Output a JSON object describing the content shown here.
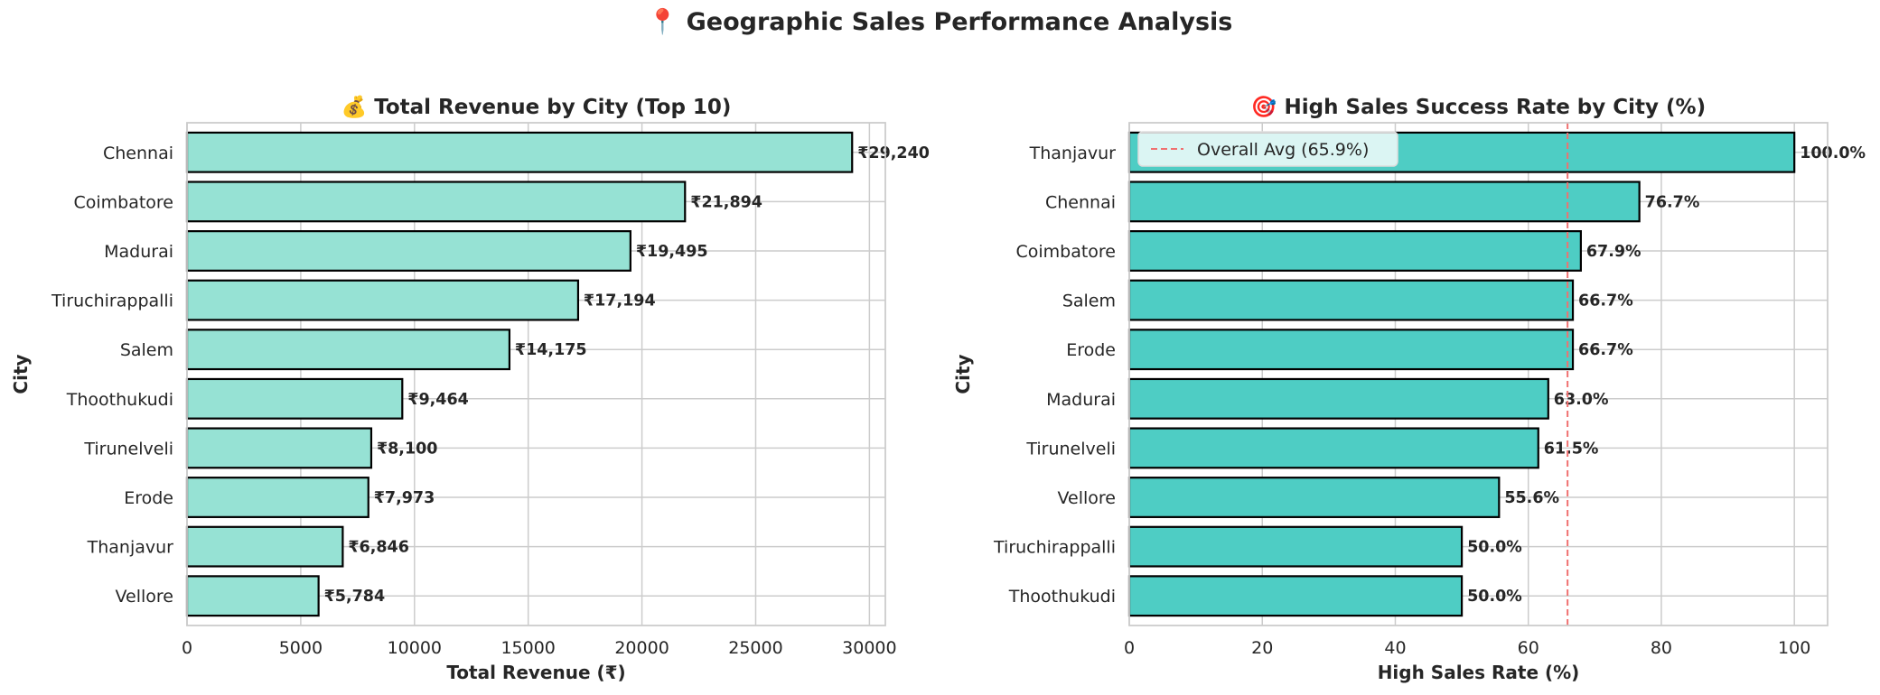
{
  "suptitle": "📍 Geographic Sales Performance Analysis",
  "colors": {
    "revenue_bar": "#96e2d4",
    "rate_bar": "#4ecdc4",
    "bar_edge": "#000000",
    "avg_line": "#f07070",
    "grid": "#cccccc",
    "spine": "#cccccc"
  },
  "chart_data": [
    {
      "type": "bar",
      "orientation": "horizontal",
      "title": "💰 Total Revenue by City (Top 10)",
      "xlabel": "Total Revenue (₹)",
      "ylabel": "City",
      "categories": [
        "Chennai",
        "Coimbatore",
        "Madurai",
        "Tiruchirappalli",
        "Salem",
        "Thoothukudi",
        "Tirunelveli",
        "Erode",
        "Thanjavur",
        "Vellore"
      ],
      "values": [
        29240,
        21894,
        19495,
        17194,
        14175,
        9464,
        8100,
        7973,
        6846,
        5784
      ],
      "data_labels": [
        "₹29,240",
        "₹21,894",
        "₹19,495",
        "₹17,194",
        "₹14,175",
        "₹9,464",
        "₹8,100",
        "₹7,973",
        "₹6,846",
        "₹5,784"
      ],
      "xlim": [
        0,
        30700
      ],
      "xticks": [
        0,
        5000,
        10000,
        15000,
        20000,
        25000,
        30000
      ],
      "xtick_labels": [
        "0",
        "5000",
        "10000",
        "15000",
        "20000",
        "25000",
        "30000"
      ],
      "grid": true
    },
    {
      "type": "bar",
      "orientation": "horizontal",
      "title": "🎯 High Sales Success Rate by City (%)",
      "xlabel": "High Sales Rate (%)",
      "ylabel": "City",
      "categories": [
        "Thanjavur",
        "Chennai",
        "Coimbatore",
        "Salem",
        "Erode",
        "Madurai",
        "Tirunelveli",
        "Vellore",
        "Tiruchirappalli",
        "Thoothukudi"
      ],
      "values": [
        100.0,
        76.7,
        67.9,
        66.7,
        66.7,
        63.0,
        61.5,
        55.6,
        50.0,
        50.0
      ],
      "data_labels": [
        "100.0%",
        "76.7%",
        "67.9%",
        "66.7%",
        "66.7%",
        "63.0%",
        "61.5%",
        "55.6%",
        "50.0%",
        "50.0%"
      ],
      "xlim": [
        0,
        105
      ],
      "xticks": [
        0,
        20,
        40,
        60,
        80,
        100
      ],
      "xtick_labels": [
        "0",
        "20",
        "40",
        "60",
        "80",
        "100"
      ],
      "reference_line": {
        "value": 65.9,
        "label": "Overall Avg (65.9%)",
        "style": "dashed"
      },
      "legend": {
        "placement": "top-left",
        "entries": [
          "Overall Avg (65.9%)"
        ]
      },
      "grid": true
    }
  ]
}
